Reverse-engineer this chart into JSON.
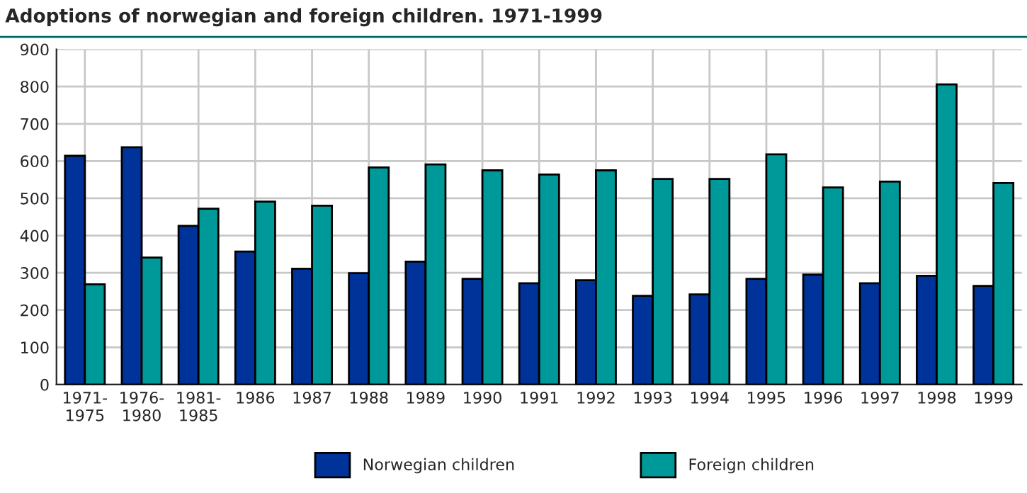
{
  "chart_data": {
    "type": "bar",
    "title": "Adoptions of norwegian and foreign children. 1971-1999",
    "categories": [
      "1971-\n1975",
      "1976-\n1980",
      "1981-\n1985",
      "1986",
      "1987",
      "1988",
      "1989",
      "1990",
      "1991",
      "1992",
      "1993",
      "1994",
      "1995",
      "1996",
      "1997",
      "1998",
      "1999"
    ],
    "series": [
      {
        "name": "Norwegian children",
        "color": "#003399",
        "values": [
          614,
          637,
          426,
          357,
          311,
          299,
          330,
          284,
          272,
          280,
          238,
          242,
          284,
          295,
          272,
          292,
          265
        ]
      },
      {
        "name": "Foreign children",
        "color": "#009999",
        "values": [
          269,
          341,
          472,
          491,
          480,
          583,
          591,
          575,
          564,
          575,
          552,
          552,
          618,
          529,
          545,
          806,
          541
        ]
      }
    ],
    "ylim": [
      0,
      900
    ],
    "yticks": [
      0,
      100,
      200,
      300,
      400,
      500,
      600,
      700,
      800,
      900
    ],
    "grid": true,
    "legend": "bottom"
  }
}
